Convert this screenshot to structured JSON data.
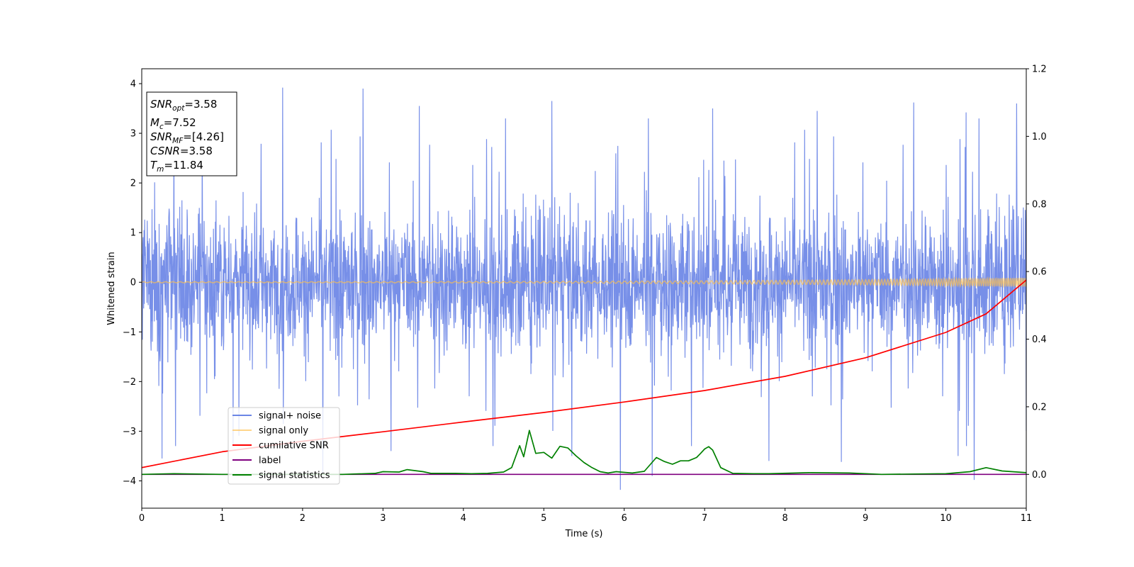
{
  "chart_data": {
    "type": "line",
    "xlabel": "Time (s)",
    "ylabel": "Whitened strain",
    "xlim": [
      0,
      11
    ],
    "ylim_left": [
      -4.55,
      4.3
    ],
    "ylim_right": [
      -0.1,
      1.2
    ],
    "xticks": [
      0,
      1,
      2,
      3,
      4,
      5,
      6,
      7,
      8,
      9,
      10,
      11
    ],
    "yticks_left": [
      -4,
      -3,
      -2,
      -1,
      0,
      1,
      2,
      3,
      4
    ],
    "yticks_right": [
      0.0,
      0.2,
      0.4,
      0.6,
      0.8,
      1.0,
      1.2
    ],
    "grid": false,
    "legend_position": "lower-left",
    "series": [
      {
        "name": "signal+ noise",
        "axis": "left",
        "color": "#6b86e6",
        "kind": "noise",
        "sample_step": 0.004,
        "core_amplitude": 1.3,
        "peaks": [
          {
            "x": 1.75,
            "y": 3.92
          },
          {
            "x": 2.75,
            "y": 3.9
          },
          {
            "x": 5.1,
            "y": 3.65
          },
          {
            "x": 7.1,
            "y": 3.5
          },
          {
            "x": 9.6,
            "y": 3.62
          },
          {
            "x": 10.88,
            "y": 3.6
          },
          {
            "x": 0.4,
            "y": 3.2
          },
          {
            "x": 3.45,
            "y": 3.55
          },
          {
            "x": 6.3,
            "y": 3.3
          },
          {
            "x": 8.4,
            "y": 3.45
          },
          {
            "x": 10.25,
            "y": 3.42
          },
          {
            "x": 5.95,
            "y": -4.18
          },
          {
            "x": 10.35,
            "y": -3.98
          },
          {
            "x": 2.25,
            "y": -3.85
          },
          {
            "x": 0.25,
            "y": -3.55
          },
          {
            "x": 0.42,
            "y": -3.3
          },
          {
            "x": 3.1,
            "y": -3.4
          },
          {
            "x": 7.8,
            "y": -3.6
          },
          {
            "x": 8.7,
            "y": -3.62
          },
          {
            "x": 10.15,
            "y": -3.5
          },
          {
            "x": 6.35,
            "y": -3.9
          },
          {
            "x": 5.35,
            "y": -3.5
          }
        ]
      },
      {
        "name": "signal only",
        "axis": "left",
        "color": "#ffc04d",
        "kind": "chirp",
        "amplitude_start": 0.01,
        "amplitude_end": 0.09
      },
      {
        "name": "cumilative SNR",
        "axis": "right",
        "color": "#ff0000",
        "kind": "curve",
        "x": [
          0,
          1,
          2,
          3,
          4,
          5,
          6,
          7,
          8,
          9,
          10,
          10.5,
          11
        ],
        "y": [
          0.02,
          0.067,
          0.098,
          0.126,
          0.155,
          0.183,
          0.214,
          0.248,
          0.29,
          0.345,
          0.42,
          0.475,
          0.575
        ]
      },
      {
        "name": "label",
        "axis": "right",
        "color": "#800080",
        "kind": "curve",
        "x": [
          0,
          11
        ],
        "y": [
          0.0,
          0.0
        ]
      },
      {
        "name": "signal statistics",
        "axis": "right",
        "color": "#008000",
        "kind": "curve",
        "x": [
          0,
          0.4,
          1,
          2,
          2.5,
          2.9,
          3.0,
          3.2,
          3.3,
          3.5,
          3.6,
          3.9,
          4.1,
          4.3,
          4.5,
          4.6,
          4.7,
          4.75,
          4.82,
          4.9,
          5.0,
          5.1,
          5.2,
          5.3,
          5.4,
          5.5,
          5.6,
          5.7,
          5.8,
          5.9,
          6.1,
          6.25,
          6.4,
          6.5,
          6.6,
          6.7,
          6.8,
          6.9,
          6.95,
          7.0,
          7.05,
          7.1,
          7.2,
          7.35,
          7.6,
          7.8,
          8.3,
          8.8,
          9.2,
          10.0,
          10.3,
          10.5,
          10.7,
          11.0
        ],
        "y": [
          0.0,
          0.002,
          0.0,
          0.0,
          0.0,
          0.003,
          0.008,
          0.007,
          0.014,
          0.008,
          0.003,
          0.003,
          0.002,
          0.003,
          0.007,
          0.02,
          0.085,
          0.052,
          0.13,
          0.062,
          0.065,
          0.048,
          0.083,
          0.078,
          0.055,
          0.035,
          0.02,
          0.008,
          0.004,
          0.008,
          0.004,
          0.009,
          0.05,
          0.038,
          0.03,
          0.04,
          0.04,
          0.05,
          0.062,
          0.075,
          0.082,
          0.072,
          0.02,
          0.003,
          0.002,
          0.002,
          0.005,
          0.004,
          0.0,
          0.002,
          0.008,
          0.02,
          0.01,
          0.005
        ]
      }
    ]
  },
  "annotation": {
    "snr_opt": {
      "main": "SNR",
      "sub": "opt",
      "value": "=3.58"
    },
    "mc": {
      "main": "M",
      "sub": "c",
      "value": "=7.52"
    },
    "snr_mf": {
      "main": "SNR",
      "sub": "MF",
      "value": "=[4.26]"
    },
    "csnr": {
      "main": "CSNR",
      "value": "=3.58"
    },
    "tm": {
      "main": "T",
      "sub": "m",
      "value": "=11.84"
    }
  }
}
